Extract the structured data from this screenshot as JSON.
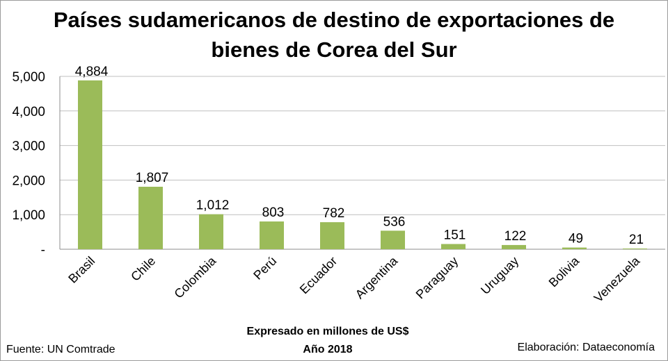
{
  "chart_data": {
    "type": "bar",
    "title_line1": "Países sudamericanos de destino de exportaciones de",
    "title_line2": "bienes de Corea del Sur",
    "categories": [
      "Brasil",
      "Chile",
      "Colombia",
      "Perú",
      "Ecuador",
      "Argentina",
      "Paraguay",
      "Uruguay",
      "Bolivia",
      "Venezuela"
    ],
    "values": [
      4884,
      1807,
      1012,
      803,
      782,
      536,
      151,
      122,
      49,
      21
    ],
    "data_labels": [
      "4,884",
      "1,807",
      "1,012",
      "803",
      "782",
      "536",
      "151",
      "122",
      "49",
      "21"
    ],
    "y_ticks": [
      {
        "value": 0,
        "label": "-"
      },
      {
        "value": 1000,
        "label": "1,000"
      },
      {
        "value": 2000,
        "label": "2,000"
      },
      {
        "value": 3000,
        "label": "3,000"
      },
      {
        "value": 4000,
        "label": "4,000"
      },
      {
        "value": 5000,
        "label": "5,000"
      }
    ],
    "ylim": [
      0,
      5000
    ],
    "grid": true,
    "bar_color": "#9bbb59",
    "grid_color": "#bfbfbf",
    "xlabel_line1": "Expresado en millones de US$",
    "xlabel_line2": "Año 2018"
  },
  "footer": {
    "source": "Fuente: UN Comtrade",
    "credit": "Elaboración: Dataeconomía"
  }
}
